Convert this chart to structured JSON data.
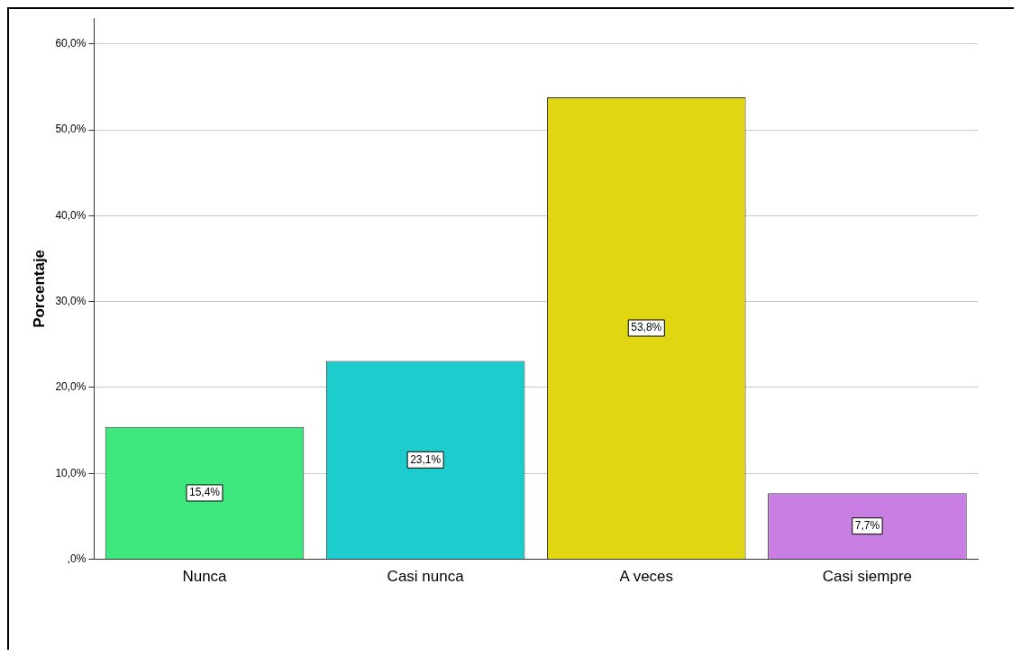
{
  "chart_data": {
    "type": "bar",
    "ylabel": "Porcentaje",
    "categories": [
      "Nunca",
      "Casi nunca",
      "A veces",
      "Casi siempre"
    ],
    "values": [
      15.4,
      23.1,
      53.8,
      7.7
    ],
    "colors": [
      "#3ee87e",
      "#1dcdcd",
      "#e0d611",
      "#c97ee3"
    ],
    "value_labels": [
      "15,4%",
      "23,1%",
      "53,8%",
      "7,7%"
    ],
    "ylim": [
      0,
      63
    ],
    "yticks": [
      {
        "value": 0,
        "label": ",0%"
      },
      {
        "value": 10,
        "label": "10,0%"
      },
      {
        "value": 20,
        "label": "20,0%"
      },
      {
        "value": 30,
        "label": "30,0%"
      },
      {
        "value": 40,
        "label": "40,0%"
      },
      {
        "value": 50,
        "label": "50,0%"
      },
      {
        "value": 60,
        "label": "60,0%"
      }
    ],
    "grid": "y",
    "legend": false
  }
}
